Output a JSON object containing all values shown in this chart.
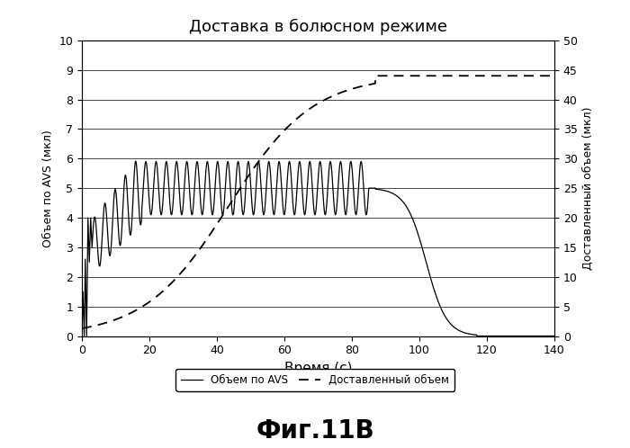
{
  "title": "Доставка в болюсном режиме",
  "xlabel": "Время (с)",
  "ylabel_left": "Объем по AVS (мкл)",
  "ylabel_right": "Доставленный объем (мкл)",
  "xlim": [
    0,
    140
  ],
  "ylim_left": [
    0,
    10.0
  ],
  "ylim_right": [
    0,
    50
  ],
  "xticks": [
    0,
    20,
    40,
    60,
    80,
    100,
    120,
    140
  ],
  "yticks_left": [
    0.0,
    1.0,
    2.0,
    3.0,
    4.0,
    5.0,
    6.0,
    7.0,
    8.0,
    9.0,
    10.0
  ],
  "yticks_right": [
    0,
    5,
    10,
    15,
    20,
    25,
    30,
    35,
    40,
    45,
    50
  ],
  "legend_label_avs": "Объем по AVS",
  "legend_label_delivered": "Доставленный объем",
  "caption": "Фиг.11В",
  "line_color": "#000000",
  "background_color": "#ffffff",
  "grid_color": "#888888",
  "fig_width": 7.0,
  "fig_height": 4.98,
  "osc_cycles": 27,
  "osc_t_start": 3.0,
  "osc_t_end": 85.0,
  "drop_t_start": 87.0,
  "drop_t_end": 117.0,
  "delivered_max": 44.0,
  "delivered_plateau_start": 87.0
}
